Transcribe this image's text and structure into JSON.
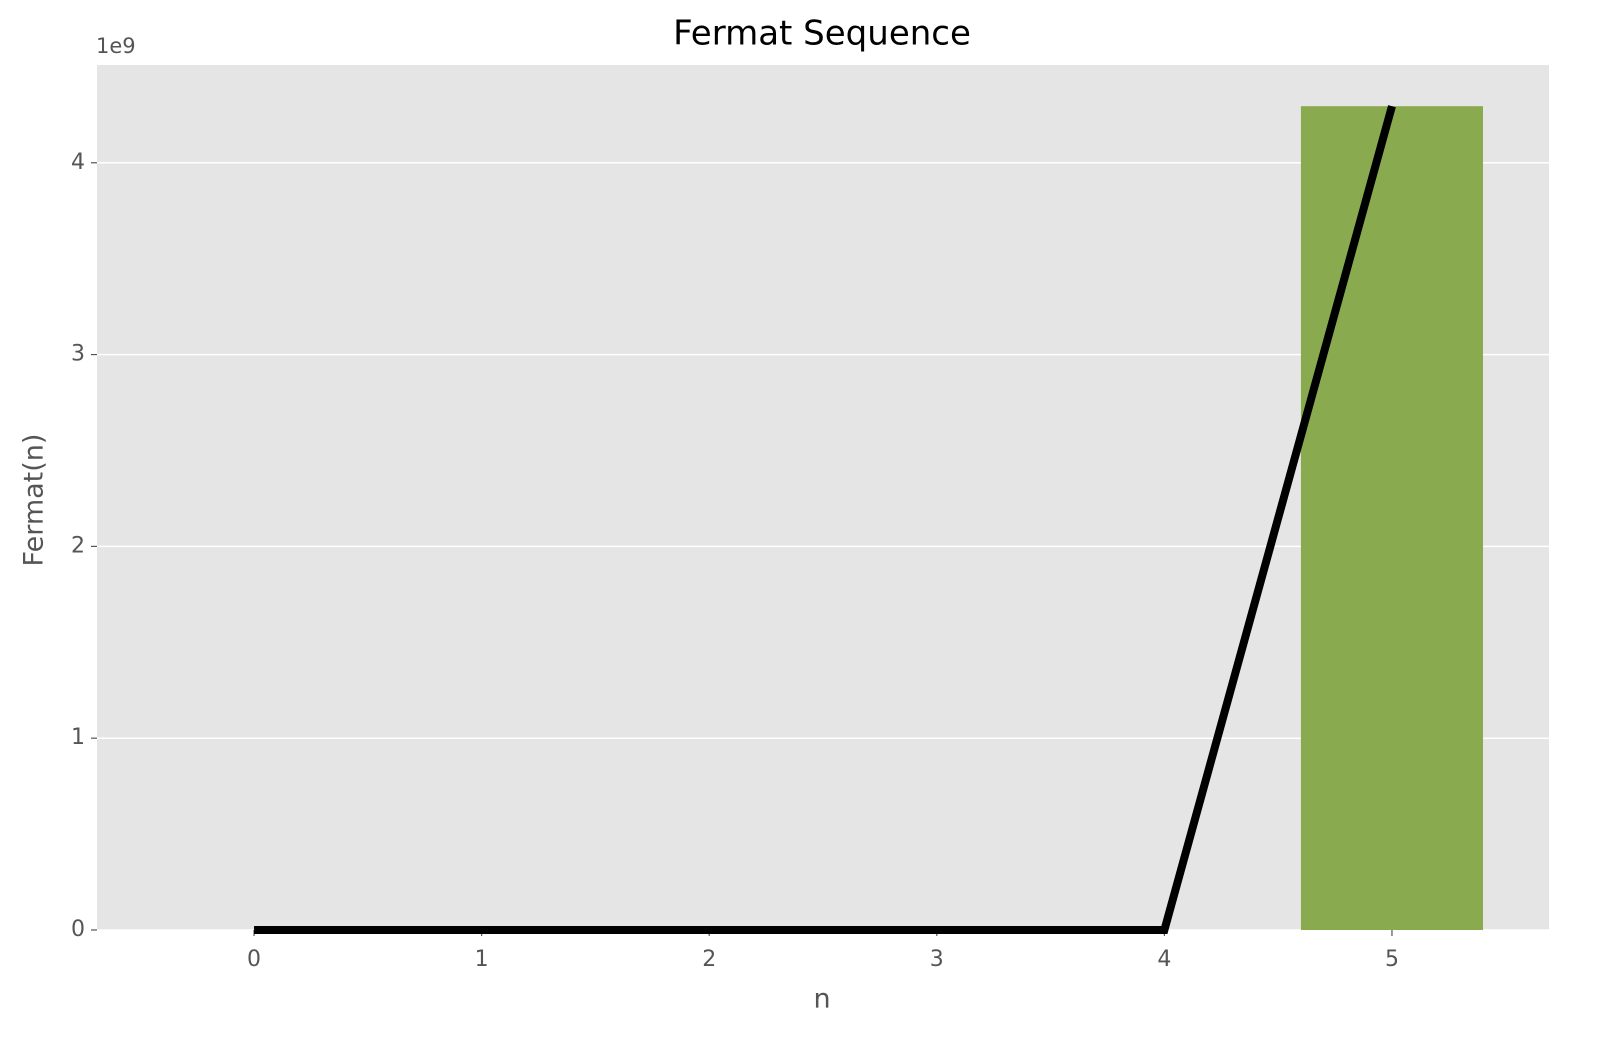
{
  "chart_data": {
    "type": "bar+line",
    "title": "Fermat Sequence",
    "x_label": "n",
    "y_label": "Fermat(n)",
    "y_offset_label": "1e9",
    "x": [
      0,
      1,
      2,
      3,
      4,
      5
    ],
    "series": [
      {
        "type": "bar",
        "color": "#8aaa4f",
        "values": [
          3,
          5,
          17,
          257,
          65537,
          4294967297
        ]
      },
      {
        "type": "line",
        "color": "#000000",
        "values": [
          3,
          5,
          17,
          257,
          65537,
          4294967297
        ]
      }
    ],
    "bar_width": 0.8,
    "xlim": [
      -0.69,
      5.69
    ],
    "ylim": [
      0,
      4509715661.85
    ],
    "xticks": [
      0,
      1,
      2,
      3,
      4,
      5
    ],
    "yticks": [
      {
        "value": 0,
        "label": "0"
      },
      {
        "value": 1000000000,
        "label": "1"
      },
      {
        "value": 2000000000,
        "label": "2"
      },
      {
        "value": 3000000000,
        "label": "3"
      },
      {
        "value": 4000000000,
        "label": "4"
      }
    ],
    "grid": true,
    "background": "#e5e5e5"
  }
}
